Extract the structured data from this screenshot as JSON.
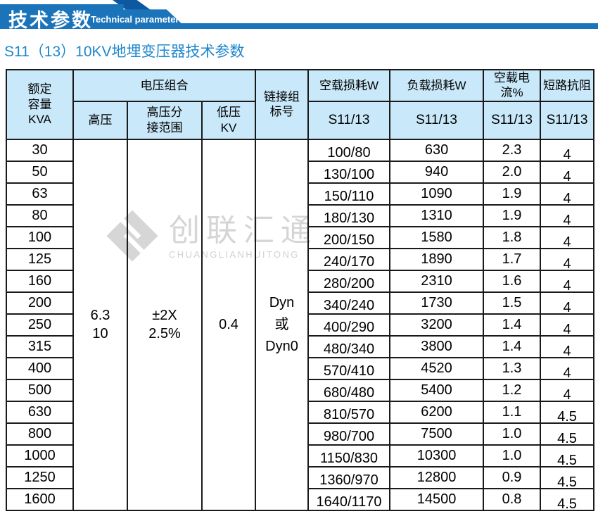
{
  "banner": {
    "title_cn": "技术参数",
    "title_en": "Technical parameter"
  },
  "page_title": "S11（13）10KV地埋变压器技术参数",
  "watermark": {
    "logo_icon": "diamond-logo",
    "name_cn": "创联汇通",
    "name_en": "CHUANGLIANHUITONG"
  },
  "colors": {
    "banner_blue": "#1b74ba",
    "banner_dark_blue": "#0c599f",
    "header_bg": "#c9e8f9",
    "title_blue": "#1d86cd",
    "table_border": "#1a1a1a",
    "watermark_gray": "#cbcbcb"
  },
  "table": {
    "header": {
      "capacity": "额定\n容量\nKVA",
      "voltage_group": "电压组合",
      "hv": "高压",
      "hv_tap": "高压分\n接范围",
      "lv": "低压\nKV",
      "vector_group": "链接组\n标号",
      "no_load_loss": "空载损耗W",
      "load_loss": "负载损耗W",
      "no_load_current": "空载电流%",
      "impedance": "短路抗阻",
      "sub": "S11/13"
    },
    "merged": {
      "hv": "6.3\n10",
      "hv_tap": "±2X\n2.5%",
      "lv": "0.4",
      "vector": "Dyn\n或\nDyn0"
    },
    "rows": [
      {
        "kva": "30",
        "no_load": "100/80",
        "load": "630",
        "current": "2.3",
        "impedance": "4"
      },
      {
        "kva": "50",
        "no_load": "130/100",
        "load": "940",
        "current": "2.0",
        "impedance": "4"
      },
      {
        "kva": "63",
        "no_load": "150/110",
        "load": "1090",
        "current": "1.9",
        "impedance": "4"
      },
      {
        "kva": "80",
        "no_load": "180/130",
        "load": "1310",
        "current": "1.9",
        "impedance": "4"
      },
      {
        "kva": "100",
        "no_load": "200/150",
        "load": "1580",
        "current": "1.8",
        "impedance": "4"
      },
      {
        "kva": "125",
        "no_load": "240/170",
        "load": "1890",
        "current": "1.7",
        "impedance": "4"
      },
      {
        "kva": "160",
        "no_load": "280/200",
        "load": "2310",
        "current": "1.6",
        "impedance": "4"
      },
      {
        "kva": "200",
        "no_load": "340/240",
        "load": "1730",
        "current": "1.5",
        "impedance": "4"
      },
      {
        "kva": "250",
        "no_load": "400/290",
        "load": "3200",
        "current": "1.4",
        "impedance": "4"
      },
      {
        "kva": "315",
        "no_load": "480/340",
        "load": "3800",
        "current": "1.4",
        "impedance": "4"
      },
      {
        "kva": "400",
        "no_load": "570/410",
        "load": "4520",
        "current": "1.3",
        "impedance": "4"
      },
      {
        "kva": "500",
        "no_load": "680/480",
        "load": "5400",
        "current": "1.2",
        "impedance": "4"
      },
      {
        "kva": "630",
        "no_load": "810/570",
        "load": "6200",
        "current": "1.1",
        "impedance": "4.5"
      },
      {
        "kva": "800",
        "no_load": "980/700",
        "load": "7500",
        "current": "1.0",
        "impedance": "4.5"
      },
      {
        "kva": "1000",
        "no_load": "1150/830",
        "load": "10300",
        "current": "1.0",
        "impedance": "4.5"
      },
      {
        "kva": "1250",
        "no_load": "1360/970",
        "load": "12800",
        "current": "0.9",
        "impedance": "4.5"
      },
      {
        "kva": "1600",
        "no_load": "1640/1170",
        "load": "14500",
        "current": "0.8",
        "impedance": "4.5"
      }
    ]
  }
}
